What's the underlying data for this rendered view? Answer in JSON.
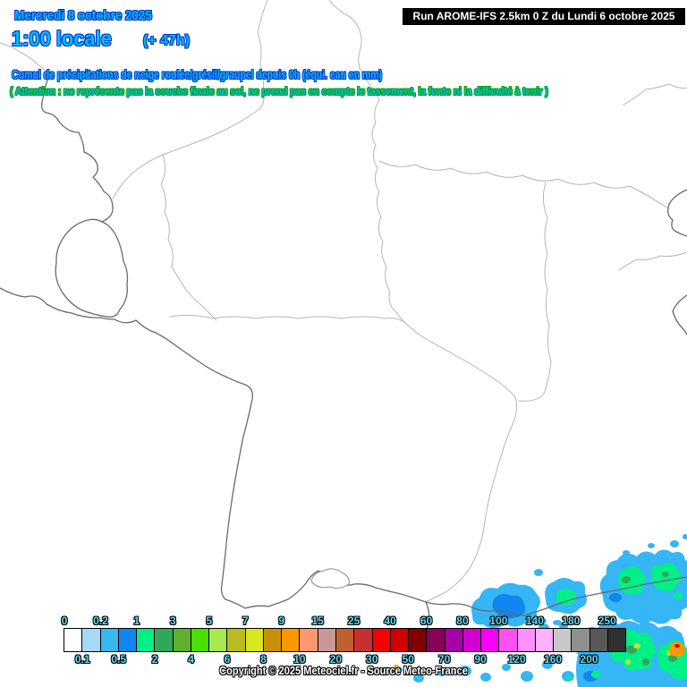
{
  "header": {
    "date": "Mercredi 8 octobre 2025",
    "time": "1:00 locale",
    "forecast_offset": "(+ 47h)",
    "run_info": "Run AROME-IFS 2.5km 0 Z du Lundi 6 octobre 2025"
  },
  "titles": {
    "main": "Cumul de précipitations de neige roulée/grésil/graupel depuis 0h (équi. eau en mm)",
    "warning": "( Attention : ne représente pas la couche finale au sol, ne prend pas en compte le tassement, la fonte ni la difficulté à tenir )"
  },
  "legend": {
    "cells": [
      {
        "boundary_label": "0",
        "label_position": "top",
        "color": "#FFFFFF"
      },
      {
        "boundary_label": "0.1",
        "label_position": "bottom",
        "color": "#A8D8F8"
      },
      {
        "boundary_label": "0.2",
        "label_position": "top",
        "color": "#38B8F0"
      },
      {
        "boundary_label": "0.5",
        "label_position": "bottom",
        "color": "#1086F0"
      },
      {
        "boundary_label": "1",
        "label_position": "top",
        "color": "#00F088"
      },
      {
        "boundary_label": "2",
        "label_position": "bottom",
        "color": "#30A858"
      },
      {
        "boundary_label": "3",
        "label_position": "top",
        "color": "#60B030"
      },
      {
        "boundary_label": "4",
        "label_position": "bottom",
        "color": "#48E000"
      },
      {
        "boundary_label": "5",
        "label_position": "top",
        "color": "#A8E850"
      },
      {
        "boundary_label": "6",
        "label_position": "bottom",
        "color": "#B8BC20"
      },
      {
        "boundary_label": "7",
        "label_position": "top",
        "color": "#D8E820"
      },
      {
        "boundary_label": "8",
        "label_position": "bottom",
        "color": "#C89008"
      },
      {
        "boundary_label": "9",
        "label_position": "top",
        "color": "#FF9800"
      },
      {
        "boundary_label": "10",
        "label_position": "bottom",
        "color": "#FF9870"
      },
      {
        "boundary_label": "15",
        "label_position": "top",
        "color": "#C89898"
      },
      {
        "boundary_label": "20",
        "label_position": "bottom",
        "color": "#C06030"
      },
      {
        "boundary_label": "25",
        "label_position": "top",
        "color": "#C83030"
      },
      {
        "boundary_label": "30",
        "label_position": "bottom",
        "color": "#F80000"
      },
      {
        "boundary_label": "40",
        "label_position": "top",
        "color": "#D00000"
      },
      {
        "boundary_label": "50",
        "label_position": "bottom",
        "color": "#800000"
      },
      {
        "boundary_label": "60",
        "label_position": "top",
        "color": "#880058"
      },
      {
        "boundary_label": "70",
        "label_position": "bottom",
        "color": "#A800A8"
      },
      {
        "boundary_label": "80",
        "label_position": "top",
        "color": "#D000D0"
      },
      {
        "boundary_label": "90",
        "label_position": "bottom",
        "color": "#F800F8"
      },
      {
        "boundary_label": "100",
        "label_position": "top",
        "color": "#FF50F0"
      },
      {
        "boundary_label": "120",
        "label_position": "bottom",
        "color": "#FF90FF"
      },
      {
        "boundary_label": "140",
        "label_position": "top",
        "color": "#FFB0FF"
      },
      {
        "boundary_label": "160",
        "label_position": "bottom",
        "color": "#C8C8C8"
      },
      {
        "boundary_label": "180",
        "label_position": "top",
        "color": "#909090"
      },
      {
        "boundary_label": "200",
        "label_position": "bottom",
        "color": "#585858"
      },
      {
        "boundary_label": "250",
        "label_position": "top",
        "color": "#303030"
      }
    ]
  },
  "footer": {
    "copyright": "Copyright © 2025 Meteociel.fr - Source Meteo-France"
  },
  "colors": {
    "header_text": "#00BEF5",
    "header_outline": "#0030C8",
    "warning_outline": "#00A000",
    "run_box_bg": "#000000",
    "run_box_text": "#FFFFFF",
    "legend_label_text": "#66DDF5",
    "border_country": "#6A6A6A",
    "border_region": "#B6B6B6"
  }
}
